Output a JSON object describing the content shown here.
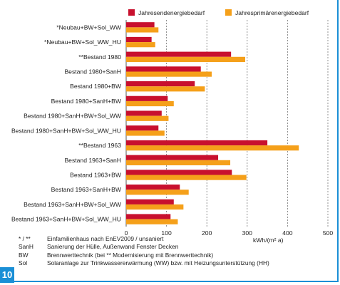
{
  "figure_number": "10",
  "notes": [
    {
      "abbr": "* / **",
      "text": "Einfamilienhaus nach EnEV2009 / unsaniert"
    },
    {
      "abbr": "SanH",
      "text": "Sanierung der Hülle, Außenwand Fenster Decken"
    },
    {
      "abbr": "BW",
      "text": "Brennwerttechnik (bei ** Modernisierung mit Brennwerttechnik)"
    },
    {
      "abbr": "Sol",
      "text": "Solaranlage zur Trinkwassererwärmung (WW) bzw. mit Heizungsunterstützung (HH)"
    }
  ],
  "chart_data": {
    "type": "bar",
    "orientation": "horizontal",
    "categories": [
      "*Neubau+BW+Sol_WW",
      "*Neubau+BW+Sol_WW_HU",
      "**Bestand 1980",
      "Bestand 1980+SanH",
      "Bestand 1980+BW",
      "Bestand 1980+SanH+BW",
      "Bestand 1980+SanH+BW+Sol_WW",
      "Bestand 1980+SanH+BW+Sol_WW_HU",
      "**Bestand 1963",
      "Bestand 1963+SanH",
      "Bestand 1963+BW",
      "Bestand 1963+SanH+BW",
      "Bestand 1963+SanH+BW+Sol_WW",
      "Bestand 1963+SanH+BW+Sol_WW_HU"
    ],
    "series": [
      {
        "name": "Jahresendenergiebedarf",
        "color": "#c8102e",
        "values": [
          70,
          63,
          260,
          185,
          170,
          103,
          88,
          80,
          350,
          228,
          262,
          133,
          118,
          110
        ]
      },
      {
        "name": "Jahresprimärenergiebedarf",
        "color": "#f5a01a",
        "values": [
          80,
          72,
          295,
          212,
          195,
          118,
          105,
          95,
          428,
          258,
          298,
          155,
          142,
          128
        ]
      }
    ],
    "xlabel": "kWh/(m² a)",
    "xlim": [
      0,
      500
    ],
    "xticks": [
      0,
      100,
      200,
      300,
      400,
      500
    ],
    "grid": "vertical dashed",
    "legend_position": "top"
  }
}
